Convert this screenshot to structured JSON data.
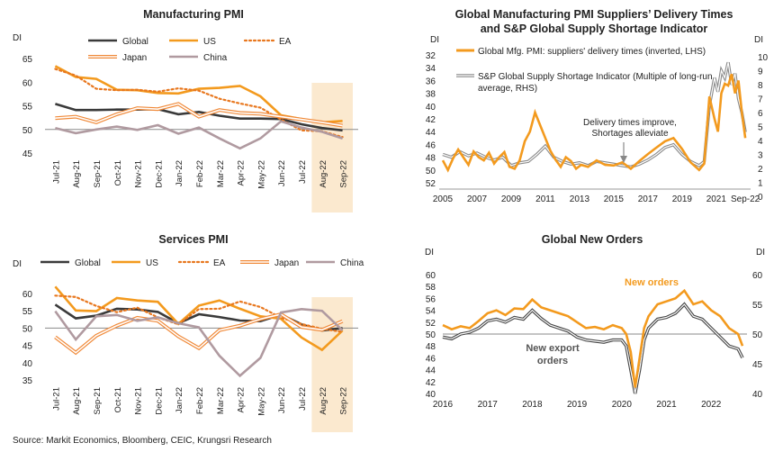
{
  "source": "Source: Markit Economics, Bloomberg, CEIC, Krungsri Research",
  "chart_data": [
    {
      "type": "line",
      "title": "Manufacturing PMI",
      "ylabel": "DI",
      "ylim": [
        45,
        65
      ],
      "yticks": [
        45,
        50,
        55,
        60,
        65
      ],
      "reference_line": 50,
      "categories": [
        "Jul-21",
        "Aug-21",
        "Sep-21",
        "Oct-21",
        "Nov-21",
        "Dec-21",
        "Jan-22",
        "Feb-22",
        "Mar-22",
        "Apr-22",
        "May-22",
        "Jun-22",
        "Jul-22",
        "Aug-22",
        "Sep-22"
      ],
      "highlight": [
        "Aug-22",
        "Sep-22"
      ],
      "series": [
        {
          "name": "Global",
          "color": "#3a3a3a",
          "style": "solid",
          "values": [
            55.4,
            54.1,
            54.1,
            54.2,
            54.2,
            54.3,
            53.2,
            53.7,
            52.9,
            52.3,
            52.3,
            52.2,
            51.1,
            50.3,
            49.8
          ]
        },
        {
          "name": "US",
          "color": "#f39a1e",
          "style": "solid",
          "values": [
            63.4,
            61.1,
            60.7,
            58.4,
            58.3,
            57.7,
            57.6,
            58.6,
            58.8,
            59.2,
            57.0,
            53.0,
            52.2,
            51.5,
            51.8
          ]
        },
        {
          "name": "EA",
          "color": "#e8771e",
          "style": "dotted",
          "values": [
            62.8,
            61.4,
            58.6,
            58.3,
            58.4,
            58.0,
            58.7,
            58.2,
            56.5,
            55.5,
            54.6,
            52.1,
            49.8,
            49.6,
            48.4
          ]
        },
        {
          "name": "Japan",
          "color": "#f08a3a",
          "style": "double",
          "values": [
            52.4,
            52.7,
            51.5,
            53.2,
            54.5,
            54.3,
            55.4,
            52.7,
            54.1,
            53.5,
            53.3,
            52.7,
            52.1,
            51.5,
            50.8
          ]
        },
        {
          "name": "China",
          "color": "#b09aa0",
          "style": "solid",
          "values": [
            50.3,
            49.2,
            50.0,
            50.6,
            49.9,
            50.9,
            49.1,
            50.4,
            48.1,
            46.0,
            48.1,
            51.7,
            50.4,
            49.5,
            48.1
          ]
        }
      ]
    },
    {
      "type": "line",
      "title": "Global Manufacturing PMI Suppliers’ Delivery Times",
      "subtitle": "and S&P Global Supply Shortage Indicator",
      "ylabel": "DI",
      "y2label": "DI",
      "ylim": [
        32,
        52
      ],
      "y_inverted": true,
      "yticks": [
        32,
        34,
        36,
        38,
        40,
        42,
        44,
        46,
        48,
        50,
        52
      ],
      "y2lim": [
        0,
        10
      ],
      "y2ticks": [
        0,
        1,
        2,
        3,
        4,
        5,
        6,
        7,
        8,
        9,
        10
      ],
      "xticks": [
        "2005",
        "2007",
        "2009",
        "2011",
        "2013",
        "2015",
        "2017",
        "2019",
        "2021",
        "Sep-22"
      ],
      "annotation": "Delivery times improve,\nShortages alleviate",
      "series": [
        {
          "name": "Global Mfg. PMI: suppliers' delivery times (inverted, LHS)",
          "color": "#f39a1e",
          "axis": "left",
          "x": [
            2005.0,
            2005.3,
            2005.6,
            2005.9,
            2006.2,
            2006.5,
            2006.8,
            2007.1,
            2007.4,
            2007.7,
            2008.0,
            2008.3,
            2008.6,
            2008.9,
            2009.2,
            2009.5,
            2009.8,
            2010.1,
            2010.4,
            2010.7,
            2011.0,
            2011.3,
            2011.6,
            2011.9,
            2012.2,
            2012.5,
            2012.8,
            2013.1,
            2013.5,
            2014.0,
            2014.5,
            2015.0,
            2015.5,
            2016.0,
            2016.5,
            2017.0,
            2017.5,
            2018.0,
            2018.5,
            2019.0,
            2019.5,
            2020.0,
            2020.3,
            2020.6,
            2020.9,
            2021.1,
            2021.3,
            2021.5,
            2021.7,
            2021.9,
            2022.1,
            2022.3,
            2022.5,
            2022.7
          ],
          "y": [
            48.5,
            50.0,
            48.2,
            46.8,
            48.0,
            49.2,
            47.1,
            48.0,
            48.5,
            47.3,
            49.0,
            48.0,
            47.2,
            49.5,
            49.8,
            48.5,
            45.5,
            44.0,
            41.0,
            43.0,
            45.0,
            47.0,
            48.4,
            49.5,
            48.0,
            48.6,
            49.8,
            49.2,
            49.5,
            48.5,
            49.2,
            49.3,
            48.8,
            49.8,
            48.6,
            47.5,
            46.5,
            45.5,
            45.0,
            46.7,
            48.8,
            50.0,
            49.0,
            38.5,
            42.0,
            44.0,
            38.0,
            36.5,
            36.8,
            35.0,
            38.0,
            36.0,
            41.0,
            45.0
          ]
        },
        {
          "name": "S&P Global Supply Shortage Indicator (Multiple of long-run average, RHS)",
          "color": "#8a8a8a",
          "axis": "right",
          "x": [
            2005.0,
            2005.5,
            2006.0,
            2006.5,
            2007.0,
            2007.5,
            2008.0,
            2008.5,
            2009.0,
            2009.5,
            2010.0,
            2010.5,
            2011.0,
            2011.5,
            2012.0,
            2012.5,
            2013.0,
            2013.5,
            2014.0,
            2014.5,
            2015.0,
            2015.5,
            2016.0,
            2016.5,
            2017.0,
            2017.5,
            2018.0,
            2018.5,
            2019.0,
            2019.5,
            2020.0,
            2020.3,
            2020.6,
            2020.9,
            2021.1,
            2021.3,
            2021.5,
            2021.7,
            2021.9,
            2022.1,
            2022.3,
            2022.5,
            2022.7
          ],
          "y": [
            3.0,
            2.8,
            3.2,
            2.9,
            3.1,
            2.8,
            2.6,
            2.8,
            2.2,
            2.4,
            2.5,
            3.0,
            3.6,
            2.8,
            2.5,
            2.3,
            2.4,
            2.2,
            2.5,
            2.4,
            2.3,
            2.2,
            2.1,
            2.3,
            2.6,
            3.0,
            3.5,
            3.7,
            3.0,
            2.5,
            2.2,
            2.5,
            6.5,
            8.5,
            7.5,
            9.0,
            8.5,
            9.6,
            8.0,
            8.8,
            7.0,
            6.0,
            4.6
          ]
        }
      ]
    },
    {
      "type": "line",
      "title": "Services PMI",
      "ylabel": "DI",
      "ylim": [
        35,
        60
      ],
      "yticks": [
        35,
        40,
        45,
        50,
        55,
        60
      ],
      "reference_line": 50,
      "categories": [
        "Jul-21",
        "Aug-21",
        "Sep-21",
        "Oct-21",
        "Nov-21",
        "Dec-21",
        "Jan-22",
        "Feb-22",
        "Mar-22",
        "Apr-22",
        "May-22",
        "Jun-22",
        "Jul-22",
        "Aug-22",
        "Sep-22"
      ],
      "highlight": [
        "Aug-22",
        "Sep-22"
      ],
      "series": [
        {
          "name": "Global",
          "color": "#3a3a3a",
          "style": "solid",
          "values": [
            56.8,
            52.8,
            53.6,
            55.6,
            55.4,
            54.7,
            51.4,
            54.0,
            53.2,
            52.2,
            52.0,
            53.9,
            51.1,
            49.3,
            50.0
          ]
        },
        {
          "name": "US",
          "color": "#f39a1e",
          "style": "solid",
          "values": [
            62.0,
            55.1,
            54.9,
            58.7,
            58.0,
            57.6,
            51.2,
            56.5,
            58.0,
            55.6,
            53.4,
            52.7,
            47.3,
            43.7,
            49.3
          ]
        },
        {
          "name": "EA",
          "color": "#e8771e",
          "style": "dotted",
          "values": [
            59.4,
            59.0,
            56.4,
            54.6,
            55.9,
            53.1,
            51.1,
            55.5,
            55.6,
            57.7,
            56.1,
            53.0,
            51.2,
            49.8,
            48.9
          ]
        },
        {
          "name": "Japan",
          "color": "#f08a3a",
          "style": "double",
          "values": [
            47.4,
            42.9,
            47.8,
            50.7,
            53.0,
            52.1,
            47.6,
            44.2,
            49.4,
            50.7,
            52.6,
            54.0,
            50.3,
            49.5,
            52.0
          ]
        },
        {
          "name": "China",
          "color": "#b09aa0",
          "style": "solid",
          "values": [
            54.9,
            46.7,
            53.4,
            53.8,
            52.1,
            53.1,
            51.4,
            50.2,
            42.0,
            36.2,
            41.4,
            54.5,
            55.5,
            55.0,
            49.3
          ]
        }
      ]
    },
    {
      "type": "line",
      "title": "Global New Orders",
      "ylabel": "DI",
      "y2label": "DI",
      "ylim": [
        40,
        60
      ],
      "yticks": [
        40,
        42,
        44,
        46,
        48,
        50,
        52,
        54,
        56,
        58,
        60
      ],
      "y2lim": [
        40,
        60
      ],
      "y2ticks": [
        40,
        45,
        50,
        55,
        60
      ],
      "reference_line": 50,
      "xticks": [
        "2016",
        "2017",
        "2018",
        "2019",
        "2020",
        "2021",
        "2022"
      ],
      "series": [
        {
          "name": "New orders",
          "color": "#f39a1e",
          "x": [
            2016.0,
            2016.2,
            2016.4,
            2016.6,
            2016.8,
            2017.0,
            2017.2,
            2017.4,
            2017.6,
            2017.8,
            2018.0,
            2018.2,
            2018.4,
            2018.6,
            2018.8,
            2019.0,
            2019.2,
            2019.4,
            2019.6,
            2019.8,
            2020.0,
            2020.1,
            2020.2,
            2020.3,
            2020.4,
            2020.5,
            2020.6,
            2020.8,
            2021.0,
            2021.2,
            2021.4,
            2021.6,
            2021.8,
            2022.0,
            2022.2,
            2022.4,
            2022.6,
            2022.7
          ],
          "y": [
            51.5,
            50.8,
            51.3,
            51.0,
            52.2,
            53.5,
            54.0,
            53.2,
            54.3,
            54.2,
            55.8,
            54.5,
            54.0,
            53.5,
            53.0,
            52.0,
            51.0,
            51.2,
            50.8,
            51.5,
            51.0,
            50.0,
            47.0,
            41.0,
            46.0,
            51.0,
            53.0,
            55.0,
            55.5,
            56.0,
            57.3,
            55.0,
            55.5,
            54.0,
            53.0,
            51.0,
            50.0,
            48.0
          ]
        },
        {
          "name": "New export orders",
          "color": "#444444",
          "x": [
            2016.0,
            2016.2,
            2016.4,
            2016.6,
            2016.8,
            2017.0,
            2017.2,
            2017.4,
            2017.6,
            2017.8,
            2018.0,
            2018.2,
            2018.4,
            2018.6,
            2018.8,
            2019.0,
            2019.2,
            2019.4,
            2019.6,
            2019.8,
            2020.0,
            2020.1,
            2020.2,
            2020.3,
            2020.4,
            2020.5,
            2020.6,
            2020.8,
            2021.0,
            2021.2,
            2021.4,
            2021.6,
            2021.8,
            2022.0,
            2022.2,
            2022.4,
            2022.6,
            2022.7
          ],
          "y": [
            49.5,
            49.2,
            50.0,
            50.3,
            51.0,
            52.2,
            52.5,
            52.0,
            52.8,
            52.5,
            54.0,
            52.6,
            51.5,
            51.0,
            50.5,
            49.5,
            49.0,
            48.8,
            48.6,
            49.0,
            49.0,
            48.0,
            44.0,
            40.0,
            44.0,
            49.0,
            51.0,
            52.5,
            52.8,
            53.5,
            55.0,
            53.0,
            52.5,
            51.0,
            49.5,
            48.0,
            47.5,
            46.0
          ]
        }
      ]
    }
  ]
}
